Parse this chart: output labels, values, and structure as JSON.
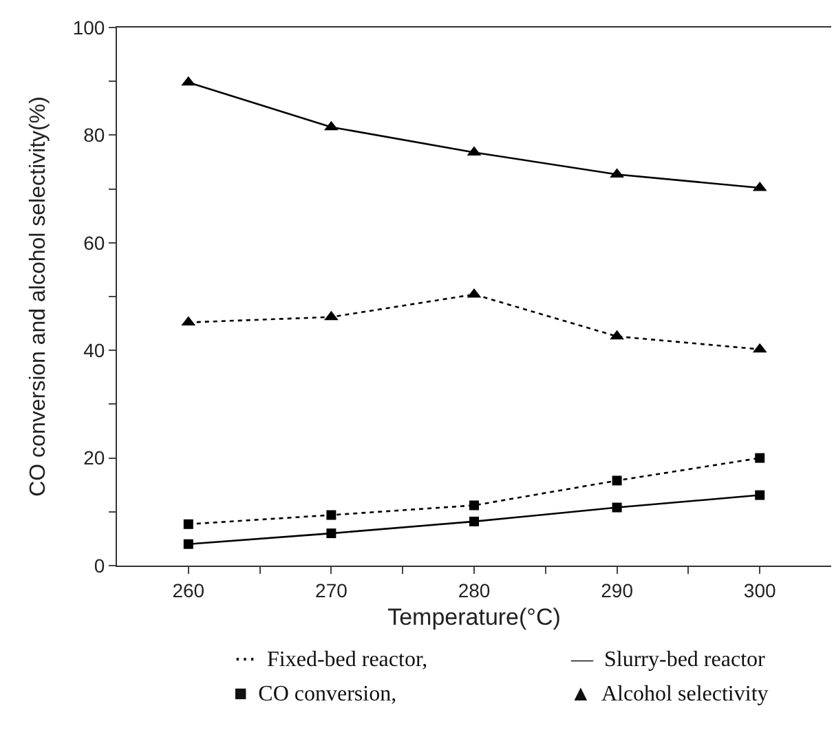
{
  "chart_data": {
    "type": "line",
    "xlabel": "Temperature(°C)",
    "ylabel": "CO conversion and alcohol selectivity(%)",
    "x": [
      260,
      270,
      280,
      290,
      300
    ],
    "series": [
      {
        "color": "#000000",
        "marker": "triangle",
        "line_style": "solid",
        "values": [
          89.8,
          81.5,
          76.8,
          72.7,
          70.2
        ]
      },
      {
        "color": "#000000",
        "marker": "triangle",
        "line_style": "dotted",
        "values": [
          45.2,
          46.2,
          50.4,
          42.6,
          40.2
        ]
      },
      {
        "color": "#000000",
        "marker": "square",
        "line_style": "dotted",
        "values": [
          7.7,
          9.4,
          11.2,
          15.8,
          20.0
        ]
      },
      {
        "color": "#000000",
        "marker": "square",
        "line_style": "solid",
        "values": [
          4.0,
          6.0,
          8.2,
          10.8,
          13.1
        ]
      }
    ],
    "xlim": [
      255,
      305
    ],
    "ylim": [
      0,
      100
    ],
    "xticks": [
      260,
      {
        "value": 265,
        "label": null
      },
      270,
      {
        "value": 275,
        "label": null
      },
      280,
      {
        "value": 285,
        "label": null
      },
      290,
      {
        "value": 295,
        "label": null
      },
      300
    ],
    "yticks": [
      0,
      {
        "value": 10,
        "label": null
      },
      20,
      {
        "value": 30,
        "label": null
      },
      40,
      {
        "value": 50,
        "label": null
      },
      60,
      {
        "value": 70,
        "label": null
      },
      80,
      {
        "value": 90,
        "label": null
      },
      100
    ],
    "legend": false,
    "annotations": [
      "⋯  Fixed-bed reactor,",
      "—  Slurry-bed reactor",
      "■  CO conversion,",
      "▲  Alcohol selectivity"
    ]
  }
}
